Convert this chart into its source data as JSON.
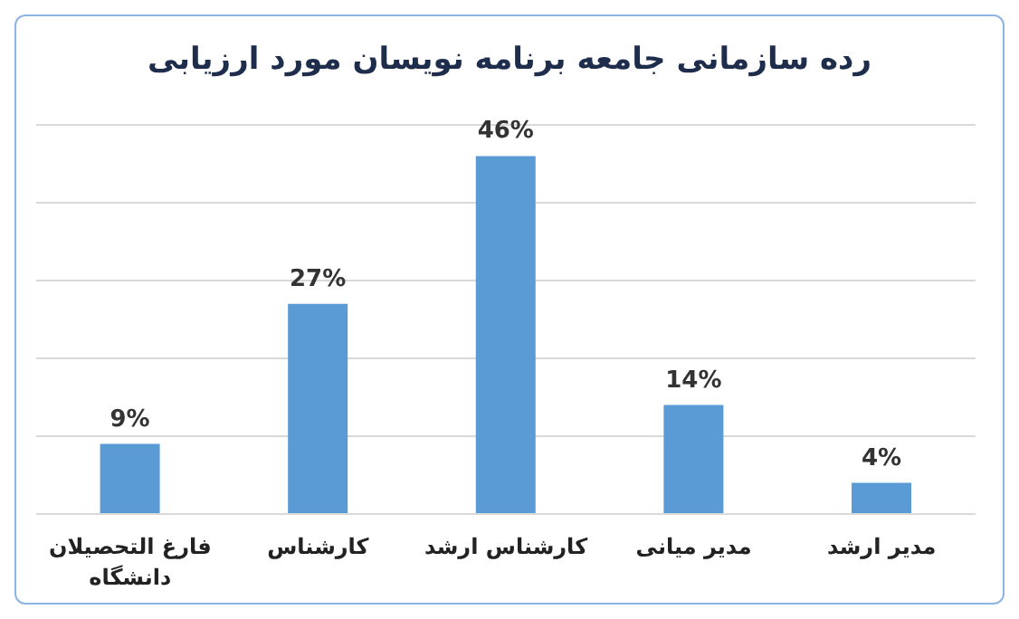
{
  "chart_data": {
    "type": "bar",
    "title": "رده سازمانی جامعه برنامه نویسان مورد ارزیابی",
    "categories": [
      "فارغ التحصیلان دانشگاه",
      "کارشناس",
      "کارشناس ارشد",
      "مدیر میانی",
      "مدیر ارشد"
    ],
    "values": [
      9,
      27,
      46,
      14,
      4
    ],
    "value_labels": [
      "9%",
      "27%",
      "46%",
      "14%",
      "4%"
    ],
    "color": "#5b9bd5",
    "ylim": [
      0,
      50
    ],
    "yticks": [
      {
        "value": 0,
        "label": null
      },
      {
        "value": 10,
        "label": null
      },
      {
        "value": 20,
        "label": null
      },
      {
        "value": 30,
        "label": null
      },
      {
        "value": 40,
        "label": null
      },
      {
        "value": 50,
        "label": null
      }
    ],
    "grid": "y",
    "tick_labels": "x",
    "legend": false
  }
}
